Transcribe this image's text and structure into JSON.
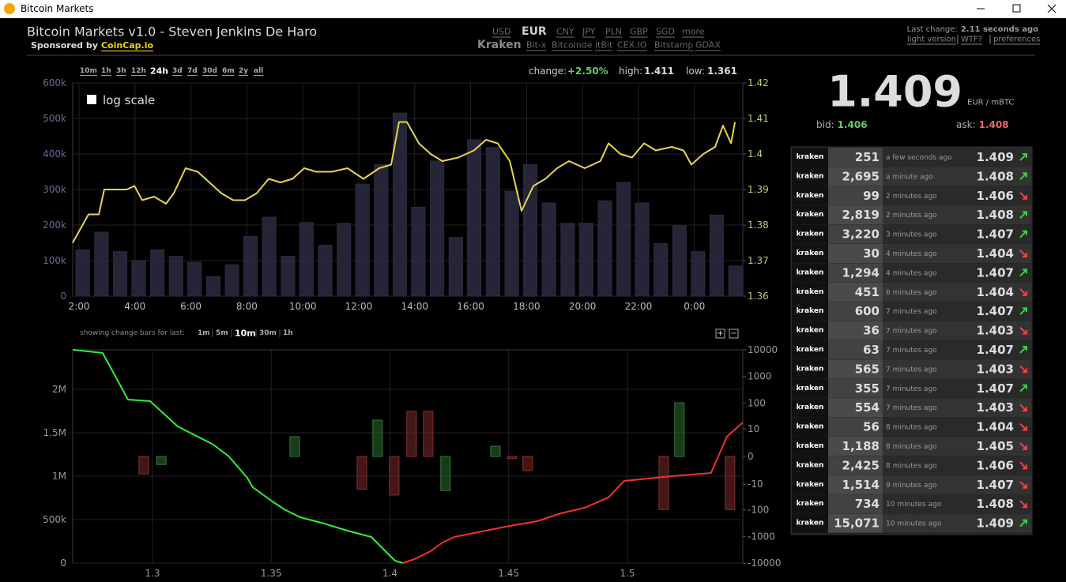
{
  "window": {
    "title": "Bitcoin Markets"
  },
  "header": {
    "title": "Bitcoin Markets v1.0 - Steven Jenkins De Haro",
    "sponsor_prefix": "Sponsored by",
    "sponsor": "CoinCap.io",
    "currencies": [
      "USD",
      "EUR",
      "CNY",
      "JPY",
      "PLN",
      "GBP",
      "SGD",
      "more"
    ],
    "selected_currency": 1,
    "exchanges": [
      "Kraken",
      "Bit-x",
      "Bitcoinde",
      "itBit",
      "CEX.IO",
      "Bitstamp",
      "GDAX"
    ],
    "selected_exchange": 0,
    "last_change_label": "Last change:",
    "last_change": "2.11 seconds ago",
    "links": [
      "light version",
      "WTF?",
      "preferences"
    ]
  },
  "ticker": {
    "price": "1.409",
    "unit": "EUR / mBTC",
    "bid_label": "bid:",
    "bid": "1.406",
    "ask_label": "ask:",
    "ask": "1.408"
  },
  "trades": {
    "rows": [
      {
        "exchange": "kraken",
        "amount": "251",
        "time": "a few seconds ago",
        "price": "1.409",
        "direction": "up"
      },
      {
        "exchange": "kraken",
        "amount": "2,695",
        "time": "a minute ago",
        "price": "1.408",
        "direction": "up"
      },
      {
        "exchange": "kraken",
        "amount": "99",
        "time": "2 minutes ago",
        "price": "1.406",
        "direction": "down"
      },
      {
        "exchange": "kraken",
        "amount": "2,819",
        "time": "2 minutes ago",
        "price": "1.408",
        "direction": "up"
      },
      {
        "exchange": "kraken",
        "amount": "3,220",
        "time": "3 minutes ago",
        "price": "1.407",
        "direction": "up"
      },
      {
        "exchange": "kraken",
        "amount": "30",
        "time": "4 minutes ago",
        "price": "1.404",
        "direction": "down"
      },
      {
        "exchange": "kraken",
        "amount": "1,294",
        "time": "4 minutes ago",
        "price": "1.407",
        "direction": "up"
      },
      {
        "exchange": "kraken",
        "amount": "451",
        "time": "6 minutes ago",
        "price": "1.404",
        "direction": "down"
      },
      {
        "exchange": "kraken",
        "amount": "600",
        "time": "7 minutes ago",
        "price": "1.407",
        "direction": "up"
      },
      {
        "exchange": "kraken",
        "amount": "36",
        "time": "7 minutes ago",
        "price": "1.403",
        "direction": "down"
      },
      {
        "exchange": "kraken",
        "amount": "63",
        "time": "7 minutes ago",
        "price": "1.407",
        "direction": "up"
      },
      {
        "exchange": "kraken",
        "amount": "565",
        "time": "7 minutes ago",
        "price": "1.403",
        "direction": "down"
      },
      {
        "exchange": "kraken",
        "amount": "355",
        "time": "7 minutes ago",
        "price": "1.407",
        "direction": "up"
      },
      {
        "exchange": "kraken",
        "amount": "554",
        "time": "7 minutes ago",
        "price": "1.403",
        "direction": "down"
      },
      {
        "exchange": "kraken",
        "amount": "56",
        "time": "8 minutes ago",
        "price": "1.404",
        "direction": "down"
      },
      {
        "exchange": "kraken",
        "amount": "1,188",
        "time": "8 minutes ago",
        "price": "1.405",
        "direction": "down"
      },
      {
        "exchange": "kraken",
        "amount": "2,425",
        "time": "8 minutes ago",
        "price": "1.406",
        "direction": "down"
      },
      {
        "exchange": "kraken",
        "amount": "1,514",
        "time": "9 minutes ago",
        "price": "1.407",
        "direction": "down"
      },
      {
        "exchange": "kraken",
        "amount": "734",
        "time": "10 minutes ago",
        "price": "1.408",
        "direction": "down"
      },
      {
        "exchange": "kraken",
        "amount": "15,071",
        "time": "10 minutes ago",
        "price": "1.409",
        "direction": "up"
      }
    ]
  },
  "chart_data": [
    {
      "type": "bar-line",
      "time_ranges": [
        "10m",
        "1h",
        "3h",
        "12h",
        "24h",
        "3d",
        "7d",
        "30d",
        "6m",
        "2y",
        "all"
      ],
      "selected_range": 4,
      "stats": [
        {
          "label": "change:",
          "value": "+2.50%"
        },
        {
          "label": "high:",
          "value": "1.411"
        },
        {
          "label": "low:",
          "value": "1.361"
        }
      ],
      "log_scale_label": "log scale",
      "log_scale": false,
      "grid": true,
      "xlim": [
        1.774,
        25.73
      ],
      "xticks": [
        {
          "value": 2,
          "label": "2:00"
        },
        {
          "value": 4,
          "label": "4:00"
        },
        {
          "value": 6,
          "label": "6:00"
        },
        {
          "value": 8,
          "label": "8:00"
        },
        {
          "value": 10,
          "label": "10:00"
        },
        {
          "value": 12,
          "label": "12:00"
        },
        {
          "value": 14,
          "label": "14:00"
        },
        {
          "value": 16,
          "label": "16:00"
        },
        {
          "value": 18,
          "label": "18:00"
        },
        {
          "value": 20,
          "label": "20:00"
        },
        {
          "value": 22,
          "label": "22:00"
        },
        {
          "value": 24,
          "label": "0:00"
        }
      ],
      "ylim": [
        0,
        600000
      ],
      "yticks": [
        0,
        {
          "value": 100000,
          "label": "100k"
        },
        {
          "value": 200000,
          "label": "200k"
        },
        {
          "value": 300000,
          "label": "300k"
        },
        {
          "value": 400000,
          "label": "400k"
        },
        {
          "value": 500000,
          "label": "500k"
        },
        {
          "value": 600000,
          "label": "600k"
        }
      ],
      "y2lim": [
        1.36,
        1.42
      ],
      "y2ticks": [
        1.36,
        1.37,
        1.38,
        1.39,
        1.4,
        1.41,
        1.42
      ],
      "series": [
        {
          "type": "bar",
          "color": "#29293d",
          "x": [
            2.13,
            2.8,
            3.47,
            4.13,
            4.8,
            5.47,
            6.13,
            6.8,
            7.47,
            8.13,
            8.8,
            9.47,
            10.13,
            10.8,
            11.47,
            12.13,
            12.8,
            13.47,
            14.13,
            14.8,
            15.47,
            16.13,
            16.8,
            17.47,
            18.13,
            18.8,
            19.47,
            20.13,
            20.8,
            21.47,
            22.13,
            22.8,
            23.47,
            24.13,
            24.8,
            25.47
          ],
          "values": [
            130000,
            180000,
            125000,
            100000,
            130000,
            112000,
            95000,
            55000,
            88000,
            168000,
            222000,
            112000,
            207000,
            143000,
            205000,
            315000,
            370000,
            515000,
            250000,
            380000,
            165000,
            440000,
            418000,
            295000,
            370000,
            262000,
            205000,
            205000,
            268000,
            320000,
            262000,
            148000,
            198000,
            125000,
            228000,
            85000
          ]
        },
        {
          "type": "line",
          "axis": "y2",
          "color": "#e8d44d",
          "x": [
            1.77,
            2.34,
            2.71,
            2.9,
            3.7,
            3.98,
            4.26,
            4.68,
            5.11,
            5.39,
            5.81,
            6.24,
            6.66,
            7.08,
            7.51,
            7.93,
            8.36,
            8.78,
            9.2,
            9.63,
            10.05,
            10.48,
            11.04,
            11.6,
            12.17,
            12.73,
            13.16,
            13.44,
            13.72,
            14.15,
            14.57,
            14.99,
            15.56,
            16.12,
            16.55,
            16.97,
            17.4,
            17.82,
            18.24,
            18.67,
            19.09,
            19.52,
            20.08,
            20.64,
            20.93,
            21.35,
            21.77,
            22.2,
            22.62,
            23.19,
            23.61,
            23.89,
            24.32,
            24.74,
            25.02,
            25.31,
            25.45
          ],
          "values": [
            1.375,
            1.383,
            1.383,
            1.39,
            1.39,
            1.391,
            1.387,
            1.388,
            1.386,
            1.389,
            1.396,
            1.395,
            1.392,
            1.389,
            1.387,
            1.387,
            1.389,
            1.393,
            1.392,
            1.393,
            1.396,
            1.395,
            1.395,
            1.396,
            1.393,
            1.396,
            1.397,
            1.409,
            1.409,
            1.403,
            1.4,
            1.398,
            1.399,
            1.401,
            1.404,
            1.403,
            1.398,
            1.384,
            1.391,
            1.393,
            1.396,
            1.398,
            1.396,
            1.398,
            1.403,
            1.4,
            1.399,
            1.403,
            1.401,
            1.402,
            1.401,
            1.397,
            1.4,
            1.402,
            1.408,
            1.403,
            1.409
          ]
        }
      ]
    },
    {
      "type": "depth",
      "controls_label": "showing change bars for last:",
      "options": [
        "1m",
        "5m",
        "10m",
        "30m",
        "1h"
      ],
      "selected_option": 2,
      "zoom_buttons": [
        "+",
        "−"
      ],
      "grid": true,
      "xlim": [
        1.2664,
        1.5486
      ],
      "xticks": [
        1.3,
        1.35,
        1.4,
        1.45,
        1.5
      ],
      "ylim": [
        0,
        2454545
      ],
      "yticks": [
        0,
        {
          "value": 500000,
          "label": "500k"
        },
        {
          "value": 1000000,
          "label": "1M"
        },
        {
          "value": 1500000,
          "label": "1.5M"
        },
        {
          "value": 2000000,
          "label": "2M"
        }
      ],
      "y2lim": [
        -10000,
        10000
      ],
      "y2scale": "symlog",
      "y2ticks": [
        10000,
        1000,
        100,
        10,
        0,
        -10,
        -100,
        -1000,
        -10000
      ],
      "series": [
        {
          "type": "line",
          "color": "#33ee33",
          "x": [
            1.2664,
            1.279,
            1.2897,
            1.299,
            1.3106,
            1.3256,
            1.3322,
            1.3399,
            1.3422,
            1.3505,
            1.3555,
            1.3622,
            1.3722,
            1.3821,
            1.3922,
            1.3971,
            1.4021,
            1.4054
          ],
          "values": [
            2455000,
            2418000,
            1882000,
            1864000,
            1573000,
            1364000,
            1227000,
            982000,
            873000,
            709000,
            618000,
            527000,
            455000,
            373000,
            300000,
            164000,
            27000,
            0
          ]
        },
        {
          "type": "line",
          "color": "#ee3333",
          "x": [
            1.4054,
            1.4104,
            1.4171,
            1.4221,
            1.4271,
            1.4354,
            1.4487,
            1.462,
            1.472,
            1.482,
            1.492,
            1.4986,
            1.5186,
            1.5352,
            1.5419,
            1.5486
          ],
          "values": [
            0,
            45000,
            136000,
            236000,
            300000,
            345000,
            418000,
            482000,
            573000,
            636000,
            755000,
            945000,
            1000000,
            1036000,
            1455000,
            1618000
          ]
        },
        {
          "type": "bar",
          "axis": "y2",
          "x": [
            1.2963,
            1.3037,
            1.3599,
            1.3882,
            1.3948,
            1.4018,
            1.4091,
            1.4161,
            1.4234,
            1.4444,
            1.4514,
            1.458,
            1.5153,
            1.5219,
            1.5432
          ],
          "values": [
            -3.5,
            -1,
            4.5,
            -16,
            22,
            -27,
            48,
            48,
            -18,
            1.4,
            -0.2,
            -2.4,
            -97,
            102,
            -97
          ],
          "colors": [
            "#7a2a2a",
            "#2e6b2e",
            "#2e6b2e",
            "#7a2a2a",
            "#2e6b2e",
            "#7a2a2a",
            "#7a2a2a",
            "#7a2a2a",
            "#2e6b2e",
            "#2e6b2e",
            "#7a2a2a",
            "#7a2a2a",
            "#7a2a2a",
            "#2e6b2e",
            "#7a2a2a"
          ]
        }
      ]
    }
  ]
}
